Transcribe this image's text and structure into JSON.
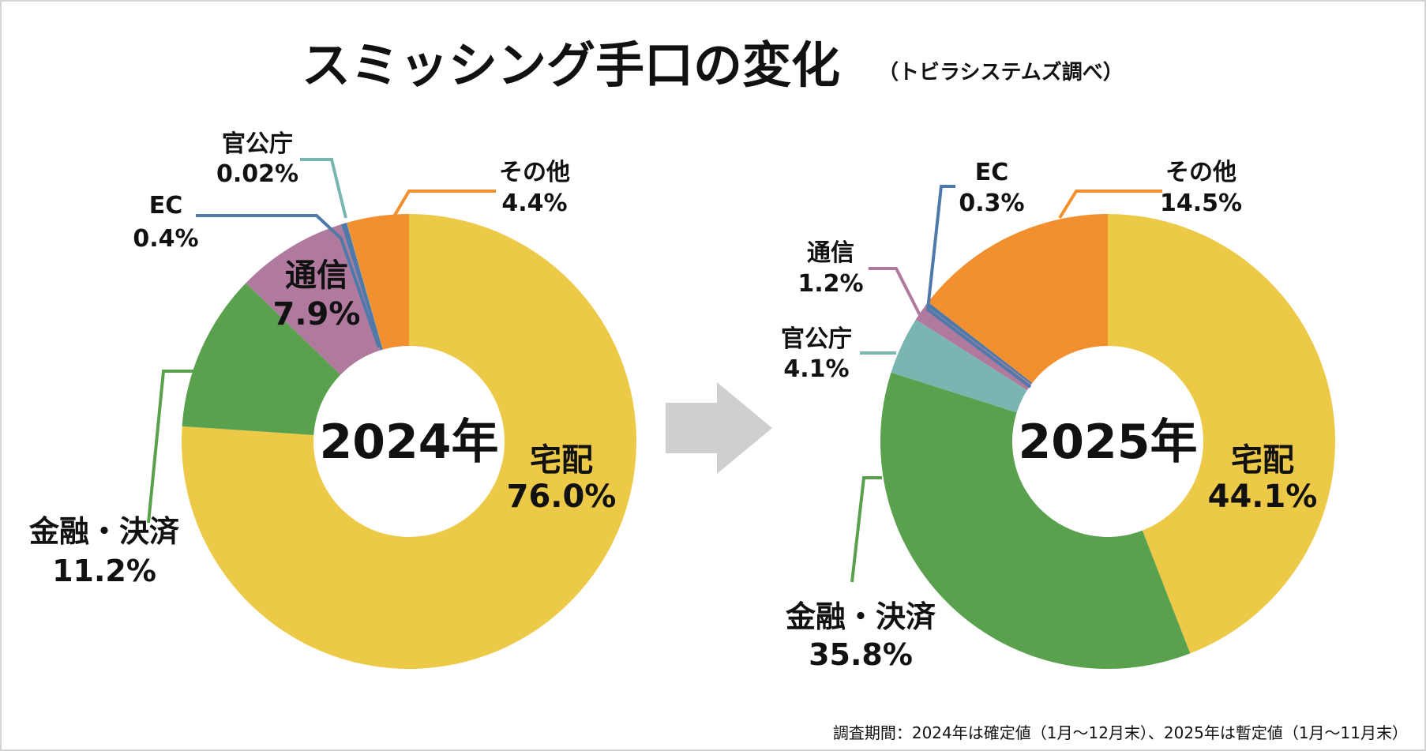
{
  "title": "スミッシング手口の変化",
  "subtitle": "（トビラシステムズ調べ）",
  "footnote": "調査期間：2024年は確定値（1月～12月末）、2025年は暫定値（1月～11月末）",
  "colors": {
    "宅配": "#ecc947",
    "金融・決済": "#5aa14e",
    "通信": "#b07a9f",
    "EC": "#4f79a8",
    "官公庁": "#79b6b1",
    "その他": "#f28f2f",
    "arrow": "#d0cfcf"
  },
  "chart_data": [
    {
      "type": "pie",
      "donut": true,
      "center_label": "2024年",
      "slices": [
        {
          "label": "宅配",
          "value": 76.0,
          "display": "76.0%"
        },
        {
          "label": "金融・決済",
          "value": 11.2,
          "display": "11.2%"
        },
        {
          "label": "通信",
          "value": 7.9,
          "display": "7.9%"
        },
        {
          "label": "EC",
          "value": 0.4,
          "display": "0.4%"
        },
        {
          "label": "官公庁",
          "value": 0.02,
          "display": "0.02%"
        },
        {
          "label": "その他",
          "value": 4.4,
          "display": "4.4%"
        }
      ]
    },
    {
      "type": "pie",
      "donut": true,
      "center_label": "2025年",
      "slices": [
        {
          "label": "宅配",
          "value": 44.1,
          "display": "44.1%"
        },
        {
          "label": "金融・決済",
          "value": 35.8,
          "display": "35.8%"
        },
        {
          "label": "官公庁",
          "value": 4.1,
          "display": "4.1%"
        },
        {
          "label": "通信",
          "value": 1.2,
          "display": "1.2%"
        },
        {
          "label": "EC",
          "value": 0.3,
          "display": "0.3%"
        },
        {
          "label": "その他",
          "value": 14.5,
          "display": "14.5%"
        }
      ]
    }
  ]
}
